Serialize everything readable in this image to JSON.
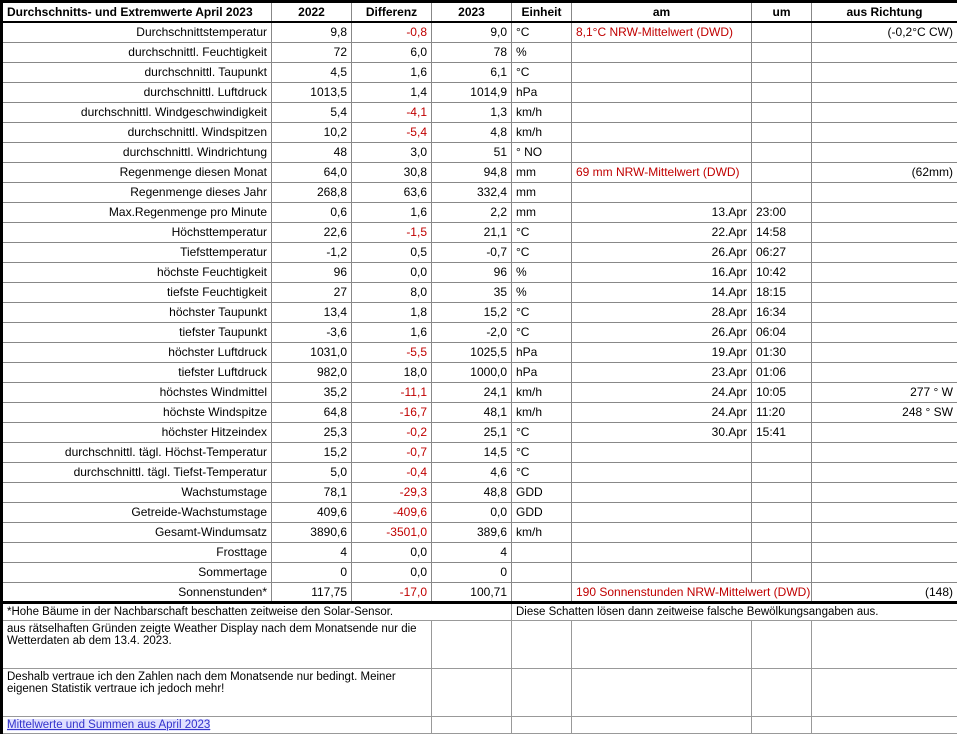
{
  "header": {
    "title": "Durchschnitts- und Extremwerte April 2023",
    "cols": [
      "2022",
      "Differenz",
      "2023",
      "Einheit",
      "am",
      "um",
      "aus Richtung"
    ]
  },
  "rows": [
    {
      "label": "Durchschnittstemperatur",
      "v22": "9,8",
      "diff": "-0,8",
      "neg": true,
      "v23": "9,0",
      "unit": "°C",
      "am": "8,1°C NRW-Mittelwert (DWD)",
      "am_red": true,
      "um": "",
      "dir": "(-0,2°C CW)"
    },
    {
      "label": "durchschnittl. Feuchtigkeit",
      "v22": "72",
      "diff": "6,0",
      "neg": false,
      "v23": "78",
      "unit": "%",
      "am": "",
      "um": "",
      "dir": ""
    },
    {
      "label": "durchschnittl. Taupunkt",
      "v22": "4,5",
      "diff": "1,6",
      "neg": false,
      "v23": "6,1",
      "unit": "°C",
      "am": "",
      "um": "",
      "dir": ""
    },
    {
      "label": "durchschnittl. Luftdruck",
      "v22": "1013,5",
      "diff": "1,4",
      "neg": false,
      "v23": "1014,9",
      "unit": "hPa",
      "am": "",
      "um": "",
      "dir": ""
    },
    {
      "label": "durchschnittl. Windgeschwindigkeit",
      "v22": "5,4",
      "diff": "-4,1",
      "neg": true,
      "v23": "1,3",
      "unit": "km/h",
      "am": "",
      "um": "",
      "dir": ""
    },
    {
      "label": "durchschnittl. Windspitzen",
      "v22": "10,2",
      "diff": "-5,4",
      "neg": true,
      "v23": "4,8",
      "unit": "km/h",
      "am": "",
      "um": "",
      "dir": ""
    },
    {
      "label": "durchschnittl. Windrichtung",
      "v22": "48",
      "diff": "3,0",
      "neg": false,
      "v23": "51",
      "unit": "°  NO",
      "am": "",
      "um": "",
      "dir": ""
    },
    {
      "label": "Regenmenge diesen Monat",
      "v22": "64,0",
      "diff": "30,8",
      "neg": false,
      "v23": "94,8",
      "unit": "mm",
      "am": "69 mm NRW-Mittelwert (DWD)",
      "am_red": true,
      "um": "",
      "dir": "(62mm)"
    },
    {
      "label": "Regenmenge dieses Jahr",
      "v22": "268,8",
      "diff": "63,6",
      "neg": false,
      "v23": "332,4",
      "unit": "mm",
      "am": "",
      "um": "",
      "dir": ""
    },
    {
      "label": "Max.Regenmenge pro Minute",
      "v22": "0,6",
      "diff": "1,6",
      "neg": false,
      "v23": "2,2",
      "unit": "mm",
      "am": "13.Apr",
      "um": "23:00",
      "dir": ""
    },
    {
      "label": "Höchsttemperatur",
      "v22": "22,6",
      "diff": "-1,5",
      "neg": true,
      "v23": "21,1",
      "unit": "°C",
      "am": "22.Apr",
      "um": "14:58",
      "dir": ""
    },
    {
      "label": "Tiefsttemperatur",
      "v22": "-1,2",
      "diff": "0,5",
      "neg": false,
      "v23": "-0,7",
      "unit": "°C",
      "am": "26.Apr",
      "um": "06:27",
      "dir": ""
    },
    {
      "label": "höchste Feuchtigkeit",
      "v22": "96",
      "diff": "0,0",
      "neg": false,
      "v23": "96",
      "unit": "%",
      "am": "16.Apr",
      "um": "10:42",
      "dir": ""
    },
    {
      "label": "tiefste Feuchtigkeit",
      "v22": "27",
      "diff": "8,0",
      "neg": false,
      "v23": "35",
      "unit": "%",
      "am": "14.Apr",
      "um": "18:15",
      "dir": ""
    },
    {
      "label": "höchster Taupunkt",
      "v22": "13,4",
      "diff": "1,8",
      "neg": false,
      "v23": "15,2",
      "unit": "°C",
      "am": "28.Apr",
      "um": "16:34",
      "dir": ""
    },
    {
      "label": "tiefster Taupunkt",
      "v22": "-3,6",
      "diff": "1,6",
      "neg": false,
      "v23": "-2,0",
      "unit": "°C",
      "am": "26.Apr",
      "um": "06:04",
      "dir": ""
    },
    {
      "label": "höchster Luftdruck",
      "v22": "1031,0",
      "diff": "-5,5",
      "neg": true,
      "v23": "1025,5",
      "unit": "hPa",
      "am": "19.Apr",
      "um": "01:30",
      "dir": ""
    },
    {
      "label": "tiefster Luftdruck",
      "v22": "982,0",
      "diff": "18,0",
      "neg": false,
      "v23": "1000,0",
      "unit": "hPa",
      "am": "23.Apr",
      "um": "01:06",
      "dir": ""
    },
    {
      "label": "höchstes Windmittel",
      "v22": "35,2",
      "diff": "-11,1",
      "neg": true,
      "v23": "24,1",
      "unit": "km/h",
      "am": "24.Apr",
      "um": "10:05",
      "dir": "277 ° W"
    },
    {
      "label": "höchste Windspitze",
      "v22": "64,8",
      "diff": "-16,7",
      "neg": true,
      "v23": "48,1",
      "unit": "km/h",
      "am": "24.Apr",
      "um": "11:20",
      "dir": "248 ° SW"
    },
    {
      "label": "höchster Hitzeindex",
      "v22": "25,3",
      "diff": "-0,2",
      "neg": true,
      "v23": "25,1",
      "unit": "°C",
      "am": "30.Apr",
      "um": "15:41",
      "dir": ""
    },
    {
      "label": "durchschnittl. tägl. Höchst-Temperatur",
      "v22": "15,2",
      "diff": "-0,7",
      "neg": true,
      "v23": "14,5",
      "unit": "°C",
      "am": "",
      "um": "",
      "dir": ""
    },
    {
      "label": "durchschnittl. tägl. Tiefst-Temperatur",
      "v22": "5,0",
      "diff": "-0,4",
      "neg": true,
      "v23": "4,6",
      "unit": "°C",
      "am": "",
      "um": "",
      "dir": ""
    },
    {
      "label": "Wachstumstage",
      "v22": "78,1",
      "diff": "-29,3",
      "neg": true,
      "v23": "48,8",
      "unit": "GDD",
      "am": "",
      "um": "",
      "dir": ""
    },
    {
      "label": "Getreide-Wachstumstage",
      "v22": "409,6",
      "diff": "-409,6",
      "neg": true,
      "v23": "0,0",
      "unit": "GDD",
      "am": "",
      "um": "",
      "dir": ""
    },
    {
      "label": "Gesamt-Windumsatz",
      "v22": "3890,6",
      "diff": "-3501,0",
      "neg": true,
      "v23": "389,6",
      "unit": "km/h",
      "am": "",
      "um": "",
      "dir": ""
    },
    {
      "label": "Frosttage",
      "v22": "4",
      "diff": "0,0",
      "neg": false,
      "v23": "4",
      "unit": "",
      "am": "",
      "um": "",
      "dir": ""
    },
    {
      "label": "Sommertage",
      "v22": "0",
      "diff": "0,0",
      "neg": false,
      "v23": "0",
      "unit": "",
      "am": "",
      "um": "",
      "dir": ""
    },
    {
      "label": "Sonnenstunden*",
      "v22": "117,75",
      "diff": "-17,0",
      "neg": true,
      "v23": "100,71",
      "unit": "",
      "am": "190 Sonnenstunden NRW-Mittelwert (DWD)",
      "am_red": true,
      "am_colspan": true,
      "um": "",
      "dir": "(148)"
    }
  ],
  "footer": {
    "note1a": "*Hohe Bäume in der Nachbarschaft beschatten zeitweise den Solar-Sensor.",
    "note1b": "Diese Schatten lösen dann zeitweise falsche Bewölkungsangaben aus.",
    "note2": "aus rätselhaften Gründen zeigte Weather Display nach dem Monatsende nur die Wetterdaten ab dem 13.4. 2023.",
    "note3": "Deshalb vertraue ich den Zahlen nach dem Monatsende nur bedingt. Meiner eigenen Statistik vertraue ich jedoch mehr!",
    "link": "Mittelwerte und Summen aus April 2023"
  }
}
